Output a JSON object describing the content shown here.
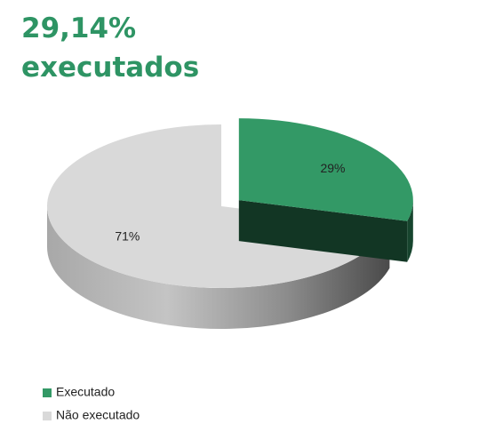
{
  "chart_data": {
    "type": "pie3d",
    "title": "29,14% executados",
    "categories": [
      "Executado",
      "Não executado"
    ],
    "values": [
      29.14,
      70.86
    ],
    "value_labels": [
      "29%",
      "71%"
    ],
    "colors": [
      "#339966",
      "#d9d9d9"
    ],
    "legend": "bottom-left"
  }
}
